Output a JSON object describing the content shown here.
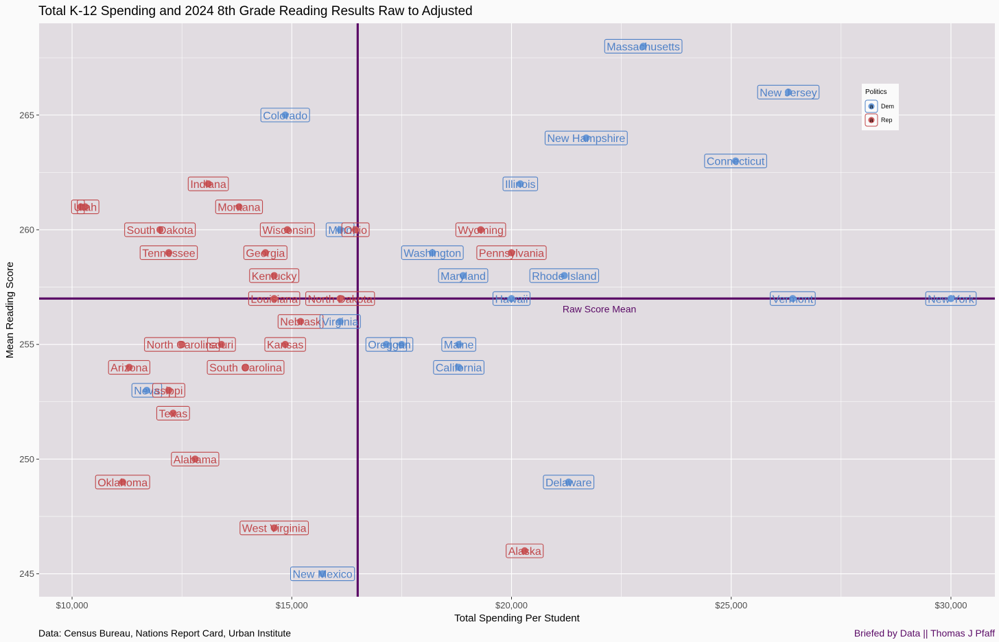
{
  "chart_data": {
    "type": "scatter",
    "title": "Total K-12 Spending and 2024 8th Grade Reading Results Raw to Adjusted",
    "xlabel": "Total Spending Per Student",
    "ylabel": "Mean Reading Score",
    "xlim": [
      9250,
      31000
    ],
    "ylim": [
      244,
      269
    ],
    "x_ticks": [
      10000,
      15000,
      20000,
      25000,
      30000
    ],
    "x_tick_labels": [
      "$10,000",
      "$15,000",
      "$20,000",
      "$25,000",
      "$30,000"
    ],
    "y_ticks": [
      245,
      250,
      255,
      260,
      265
    ],
    "y_tick_labels": [
      "245",
      "250",
      "255",
      "260",
      "265"
    ],
    "vline_x": 16500,
    "hline_y": 257,
    "hline_label": "Raw Score Mean",
    "caption_left": "Data: Census Bureau, Nations Report Card, Urban Institute",
    "caption_right": "Briefed by Data || Thomas J Pfaff",
    "legend": {
      "title": "Politics",
      "position": "top-right",
      "entries": [
        {
          "key": "Dem",
          "label": "Dem",
          "symbol": "a"
        },
        {
          "key": "Rep",
          "label": "Rep",
          "symbol": "a"
        }
      ]
    },
    "colors": {
      "Dem": "#4f81c7",
      "Rep": "#c0474a",
      "Dem_point": "#6a9ad8",
      "Rep_point": "#cc5c5e",
      "lines": "#5a0a66",
      "hline_label": "#5a0a66",
      "caption_right": "#5a0a66",
      "panel": "#e1dce1",
      "grid": "#ffffff"
    },
    "points": [
      {
        "state": "Massachusetts",
        "x": 23000,
        "y": 268,
        "party": "Dem"
      },
      {
        "state": "New Jersey",
        "x": 26300,
        "y": 266,
        "party": "Dem"
      },
      {
        "state": "Colorado",
        "x": 14850,
        "y": 265,
        "party": "Dem"
      },
      {
        "state": "New Hampshire",
        "x": 21700,
        "y": 264,
        "party": "Dem"
      },
      {
        "state": "Connecticut",
        "x": 25100,
        "y": 263,
        "party": "Dem"
      },
      {
        "state": "Illinois",
        "x": 20200,
        "y": 262,
        "party": "Dem"
      },
      {
        "state": "Indiana",
        "x": 13100,
        "y": 262,
        "party": "Rep"
      },
      {
        "state": "Idaho",
        "x": 10200,
        "y": 261,
        "party": "Rep",
        "label": "I"
      },
      {
        "state": "Utah",
        "x": 10300,
        "y": 261,
        "party": "Rep"
      },
      {
        "state": "Montana",
        "x": 13800,
        "y": 261,
        "party": "Rep"
      },
      {
        "state": "South Dakota",
        "x": 12000,
        "y": 260,
        "party": "Rep"
      },
      {
        "state": "Wisconsin",
        "x": 14900,
        "y": 260,
        "party": "Rep"
      },
      {
        "state": "Minnesota",
        "x": 16100,
        "y": 260,
        "party": "Dem",
        "label": "Minn"
      },
      {
        "state": "Ohio",
        "x": 16450,
        "y": 260,
        "party": "Rep"
      },
      {
        "state": "Wyoming",
        "x": 19300,
        "y": 260,
        "party": "Rep"
      },
      {
        "state": "Tennessee",
        "x": 12200,
        "y": 259,
        "party": "Rep"
      },
      {
        "state": "Georgia",
        "x": 14400,
        "y": 259,
        "party": "Rep"
      },
      {
        "state": "Washington",
        "x": 18200,
        "y": 259,
        "party": "Dem"
      },
      {
        "state": "Pennsylvania",
        "x": 20000,
        "y": 259,
        "party": "Rep"
      },
      {
        "state": "Kentucky",
        "x": 14600,
        "y": 258,
        "party": "Rep"
      },
      {
        "state": "Maryland",
        "x": 18900,
        "y": 258,
        "party": "Dem"
      },
      {
        "state": "Rhode Island",
        "x": 21200,
        "y": 258,
        "party": "Dem"
      },
      {
        "state": "Louisiana",
        "x": 14600,
        "y": 257,
        "party": "Rep"
      },
      {
        "state": "North Dakota",
        "x": 16100,
        "y": 257,
        "party": "Rep"
      },
      {
        "state": "Hawaii",
        "x": 20000,
        "y": 257,
        "party": "Dem"
      },
      {
        "state": "Vermont",
        "x": 26400,
        "y": 257,
        "party": "Dem"
      },
      {
        "state": "New York",
        "x": 30000,
        "y": 257,
        "party": "Dem"
      },
      {
        "state": "Nebraska",
        "x": 15200,
        "y": 256,
        "party": "Rep",
        "label": "Nebrask"
      },
      {
        "state": "Virginia",
        "x": 16100,
        "y": 256,
        "party": "Dem"
      },
      {
        "state": "North Carolina",
        "x": 12500,
        "y": 255,
        "party": "Rep"
      },
      {
        "state": "Missouri",
        "x": 13400,
        "y": 255,
        "party": "Rep",
        "label": "souri"
      },
      {
        "state": "Kansas",
        "x": 14850,
        "y": 255,
        "party": "Rep"
      },
      {
        "state": "Oregon",
        "x": 17150,
        "y": 255,
        "party": "Dem"
      },
      {
        "state": "Michigan",
        "x": 17500,
        "y": 255,
        "party": "Dem",
        "label": "gan"
      },
      {
        "state": "Maine",
        "x": 18800,
        "y": 255,
        "party": "Dem"
      },
      {
        "state": "Arizona",
        "x": 11300,
        "y": 254,
        "party": "Rep"
      },
      {
        "state": "South Carolina",
        "x": 13950,
        "y": 254,
        "party": "Rep"
      },
      {
        "state": "California",
        "x": 18800,
        "y": 254,
        "party": "Dem"
      },
      {
        "state": "Nevada",
        "x": 11700,
        "y": 253,
        "party": "Dem",
        "label": "Neva"
      },
      {
        "state": "Mississippi",
        "x": 12200,
        "y": 253,
        "party": "Rep",
        "label": "ssippi"
      },
      {
        "state": "Texas",
        "x": 12300,
        "y": 252,
        "party": "Rep"
      },
      {
        "state": "Alabama",
        "x": 12800,
        "y": 250,
        "party": "Rep"
      },
      {
        "state": "Oklahoma",
        "x": 11150,
        "y": 249,
        "party": "Rep"
      },
      {
        "state": "Delaware",
        "x": 21300,
        "y": 249,
        "party": "Dem"
      },
      {
        "state": "West Virginia",
        "x": 14600,
        "y": 247,
        "party": "Rep"
      },
      {
        "state": "Alaska",
        "x": 20300,
        "y": 246,
        "party": "Rep"
      },
      {
        "state": "New Mexico",
        "x": 15700,
        "y": 245,
        "party": "Dem"
      }
    ]
  }
}
